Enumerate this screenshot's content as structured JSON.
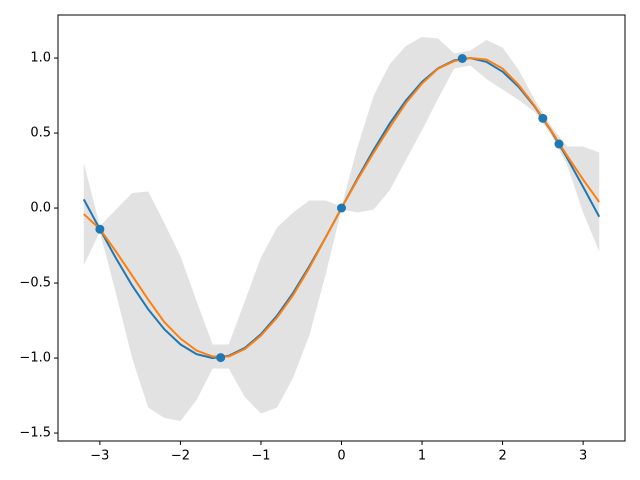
{
  "chart_data": {
    "type": "line",
    "x": [
      -3.2,
      -3.0,
      -2.8,
      -2.6,
      -2.4,
      -2.2,
      -2.0,
      -1.8,
      -1.6,
      -1.4,
      -1.2,
      -1.0,
      -0.8,
      -0.6,
      -0.4,
      -0.2,
      0,
      0.2,
      0.4,
      0.6,
      0.8,
      1.0,
      1.2,
      1.4,
      1.6,
      1.8,
      2.0,
      2.2,
      2.4,
      2.6,
      2.8,
      3.0,
      3.2
    ],
    "series": [
      {
        "color": "#1f77b4",
        "values": [
          0.058,
          -0.141,
          -0.335,
          -0.516,
          -0.675,
          -0.808,
          -0.909,
          -0.974,
          -1.0,
          -0.985,
          -0.932,
          -0.841,
          -0.717,
          -0.565,
          -0.389,
          -0.199,
          0,
          0.199,
          0.389,
          0.565,
          0.717,
          0.841,
          0.932,
          0.985,
          1.0,
          0.974,
          0.909,
          0.808,
          0.675,
          0.516,
          0.335,
          0.141,
          -0.058
        ]
      },
      {
        "color": "#ff7f0e",
        "values": [
          -0.04,
          -0.14,
          -0.29,
          -0.45,
          -0.61,
          -0.76,
          -0.87,
          -0.95,
          -0.99,
          -0.99,
          -0.94,
          -0.85,
          -0.73,
          -0.58,
          -0.4,
          -0.2,
          0,
          0.19,
          0.37,
          0.54,
          0.7,
          0.83,
          0.93,
          0.98,
          1.0,
          0.99,
          0.93,
          0.82,
          0.68,
          0.52,
          0.35,
          0.19,
          0.04
        ]
      }
    ],
    "band": {
      "color": "#d3d3d3",
      "lower": [
        -0.38,
        -0.16,
        -0.57,
        -1.0,
        -1.33,
        -1.4,
        -1.42,
        -1.28,
        -1.07,
        -1.07,
        -1.26,
        -1.37,
        -1.33,
        -1.13,
        -0.85,
        -0.45,
        -0.01,
        -0.03,
        -0.01,
        0.12,
        0.32,
        0.52,
        0.73,
        0.93,
        0.95,
        0.86,
        0.79,
        0.72,
        0.64,
        0.49,
        0.29,
        -0.03,
        -0.29
      ],
      "upper": [
        0.3,
        -0.12,
        -0.01,
        0.1,
        0.11,
        -0.1,
        -0.32,
        -0.62,
        -0.91,
        -0.91,
        -0.62,
        -0.33,
        -0.13,
        -0.03,
        0.05,
        0.05,
        0.01,
        0.41,
        0.75,
        0.96,
        1.08,
        1.14,
        1.13,
        1.03,
        1.05,
        1.12,
        1.07,
        0.92,
        0.72,
        0.55,
        0.41,
        0.41,
        0.37
      ]
    },
    "points": {
      "color": "#1f77b4",
      "x": [
        -3.0,
        -1.5,
        0,
        1.5,
        2.5,
        2.7
      ],
      "y": [
        -0.141,
        -0.997,
        0,
        0.997,
        0.598,
        0.427
      ]
    },
    "xlim": [
      -3.52,
      3.52
    ],
    "ylim": [
      -1.553,
      1.287
    ],
    "xticks": [
      {
        "value": -3,
        "label": "−3"
      },
      {
        "value": -2,
        "label": "−2"
      },
      {
        "value": -1,
        "label": "−1"
      },
      0,
      1,
      2,
      3
    ],
    "yticks": [
      {
        "value": -1.5,
        "label": "−1.5"
      },
      {
        "value": -1.0,
        "label": "−1.0"
      },
      {
        "value": -0.5,
        "label": "−0.5"
      },
      {
        "value": 0,
        "label": "0.0"
      },
      0.5,
      {
        "value": 1.0,
        "label": "1.0"
      }
    ],
    "grid": false
  }
}
